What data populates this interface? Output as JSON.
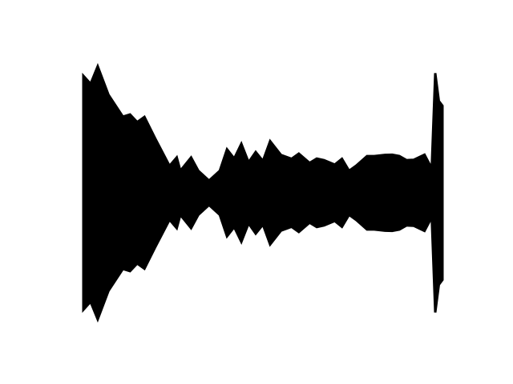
{
  "waveform": {
    "color": "#000000",
    "background": "#ffffff",
    "envelope": [
      [
        0.0,
        0.86
      ],
      [
        0.02,
        0.89
      ],
      [
        0.04,
        0.93
      ],
      [
        0.07,
        0.8
      ],
      [
        0.11,
        0.56
      ],
      [
        0.13,
        0.64
      ],
      [
        0.15,
        0.52
      ],
      [
        0.17,
        0.62
      ],
      [
        0.2,
        0.4
      ],
      [
        0.24,
        0.22
      ],
      [
        0.26,
        0.26
      ],
      [
        0.27,
        0.18
      ],
      [
        0.3,
        0.26
      ],
      [
        0.32,
        0.18
      ],
      [
        0.35,
        0.09
      ],
      [
        0.38,
        0.18
      ],
      [
        0.4,
        0.32
      ],
      [
        0.42,
        0.28
      ],
      [
        0.44,
        0.36
      ],
      [
        0.46,
        0.25
      ],
      [
        0.48,
        0.3
      ],
      [
        0.5,
        0.26
      ],
      [
        0.52,
        0.38
      ],
      [
        0.55,
        0.31
      ],
      [
        0.58,
        0.25
      ],
      [
        0.6,
        0.32
      ],
      [
        0.63,
        0.22
      ],
      [
        0.65,
        0.28
      ],
      [
        0.67,
        0.24
      ],
      [
        0.7,
        0.23
      ],
      [
        0.72,
        0.25
      ],
      [
        0.74,
        0.18
      ],
      [
        0.76,
        0.2
      ],
      [
        0.79,
        0.3
      ],
      [
        0.81,
        0.27
      ],
      [
        0.84,
        0.31
      ],
      [
        0.86,
        0.28
      ],
      [
        0.88,
        0.3
      ],
      [
        0.9,
        0.24
      ],
      [
        0.92,
        0.27
      ],
      [
        0.95,
        0.28
      ],
      [
        0.97,
        0.2
      ],
      [
        0.98,
        0.88
      ],
      [
        0.99,
        0.75
      ],
      [
        1.0,
        0.64
      ]
    ]
  }
}
